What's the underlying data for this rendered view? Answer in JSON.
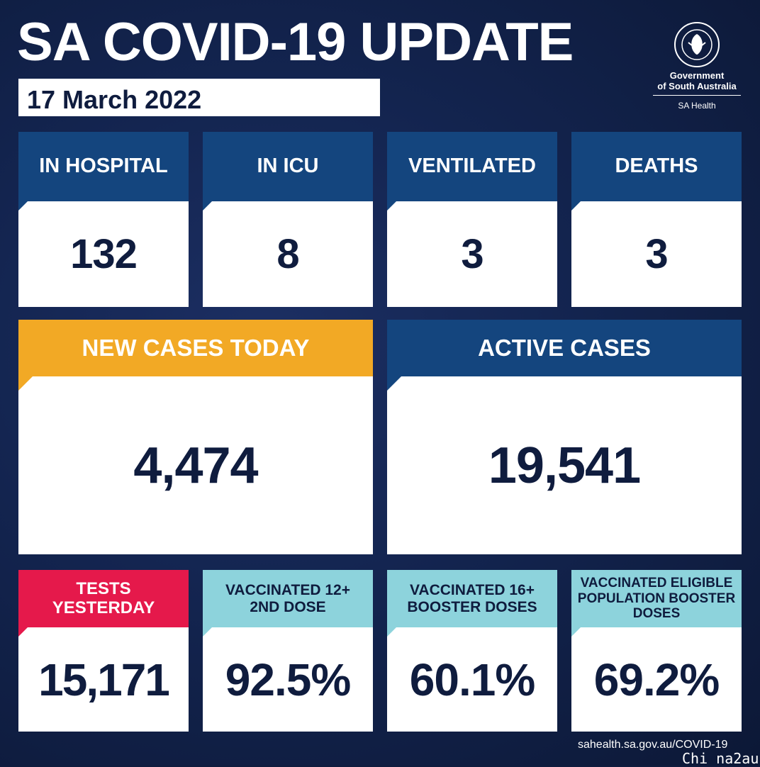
{
  "header": {
    "title": "SA COVID-19 UPDATE",
    "date": "17 March 2022"
  },
  "logo": {
    "line1": "Government",
    "line2": "of South Australia",
    "sub": "SA Health",
    "emblem_text": "SOUTH AUSTRALIA"
  },
  "row1": [
    {
      "label": "IN HOSPITAL",
      "value": "132"
    },
    {
      "label": "IN ICU",
      "value": "8"
    },
    {
      "label": "VENTILATED",
      "value": "3"
    },
    {
      "label": "DEATHS",
      "value": "3"
    }
  ],
  "row2": [
    {
      "label": "NEW CASES TODAY",
      "value": "4,474"
    },
    {
      "label": "ACTIVE CASES",
      "value": "19,541"
    }
  ],
  "row3": [
    {
      "label": "TESTS YESTERDAY",
      "value": "15,171"
    },
    {
      "label": "VACCINATED 12+ 2ND DOSE",
      "value": "92.5%"
    },
    {
      "label": "VACCINATED 16+ BOOSTER DOSES",
      "value": "60.1%"
    },
    {
      "label": "VACCINATED ELIGIBLE POPULATION BOOSTER DOSES",
      "value": "69.2%"
    }
  ],
  "footer": {
    "url": "sahealth.sa.gov.au/COVID-19"
  },
  "watermark": "Chi na2au",
  "colors": {
    "background": "#0f1c3e",
    "navy_header": "#14457e",
    "orange_header": "#f2a925",
    "red_header": "#e5194b",
    "cyan_header": "#8dd3dc",
    "value_text": "#0f1c3e"
  }
}
